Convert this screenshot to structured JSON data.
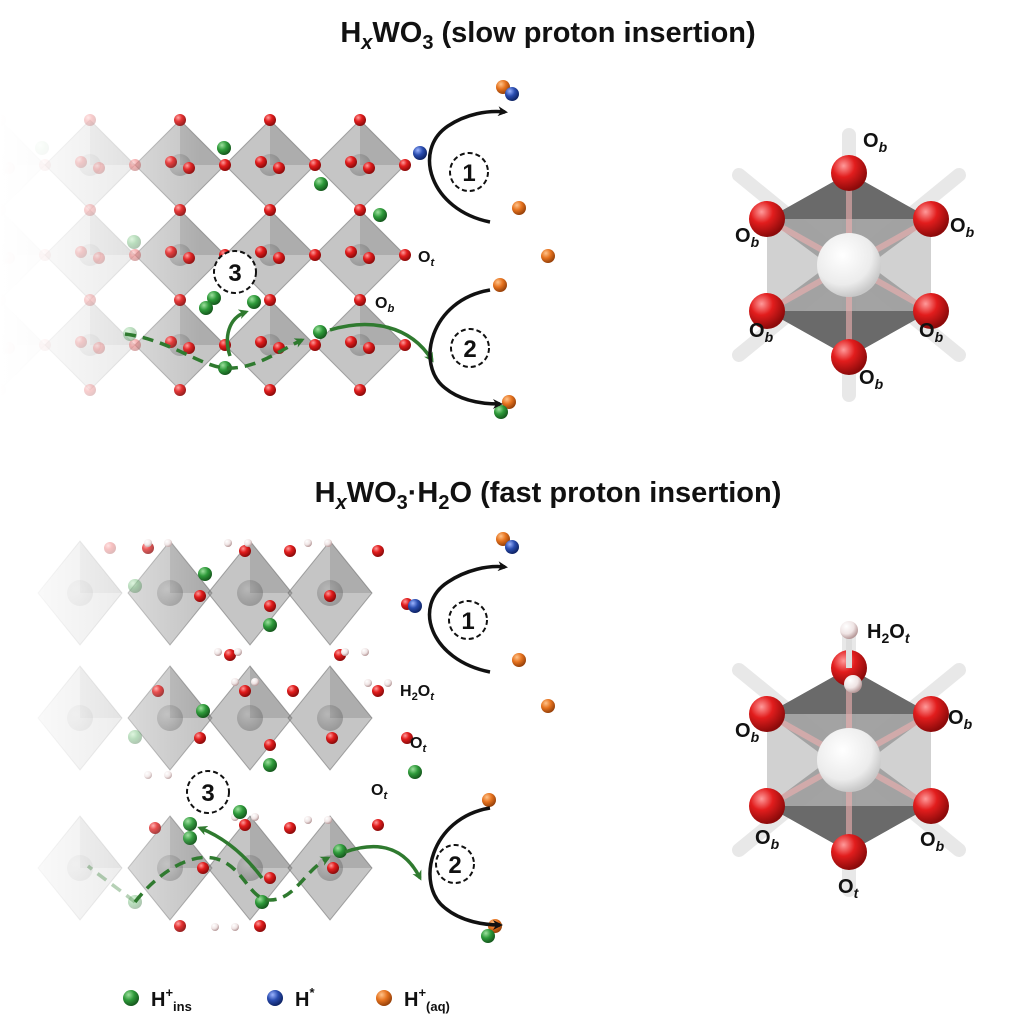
{
  "titles": {
    "top": {
      "p1": "H",
      "sub1": "x",
      "p2": "WO",
      "sub2": "3",
      "p3": " (slow proton insertion)"
    },
    "bottom": {
      "p1": "H",
      "sub1": "x",
      "p2": "WO",
      "sub2": "3",
      "p3": "·H",
      "sub3": "2",
      "p4": "O (fast proton insertion)"
    }
  },
  "steps": [
    "1",
    "2",
    "3"
  ],
  "labels": {
    "o": "O",
    "b": "b",
    "t": "t",
    "h2": "H",
    "two": "2"
  },
  "legend": [
    {
      "name": "H",
      "sup": "+",
      "sub": "ins",
      "color": "#2e9a3a"
    },
    {
      "name": "H",
      "sup": "*",
      "sub": "",
      "color": "#2a4db0"
    },
    {
      "name": "H",
      "sup": "+",
      "sub": "(aq)",
      "color": "#e6731f"
    }
  ],
  "colors": {
    "oxygen": "#e21d1d",
    "tungsten_octahedron": "#8a8a8a",
    "h_ins": "#2e9a3a",
    "h_star": "#2a4db0",
    "h_aq": "#e6731f",
    "h_water": "#f2e6e6",
    "pathway": "#2f7a2f"
  }
}
